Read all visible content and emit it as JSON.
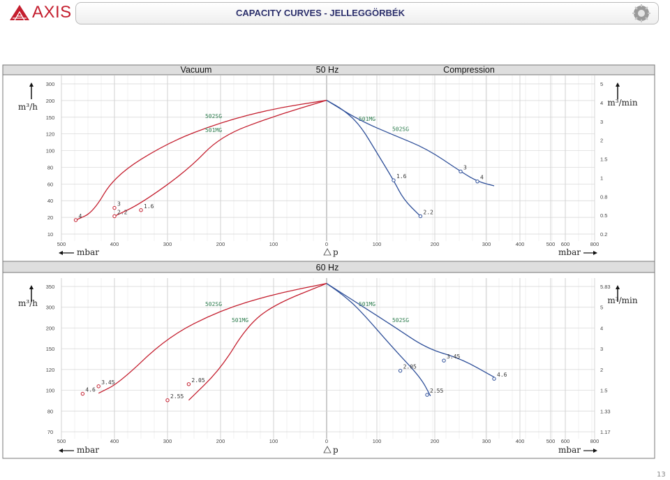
{
  "header": {
    "brand": "AXIS",
    "title": "CAPACITY CURVES - JELLEGGÖRBÉK",
    "page_number": "13"
  },
  "colors": {
    "vacuum_curve": "#c41e2e",
    "compression_curve": "#2e4f99",
    "label_green": "#2e7d4f",
    "band": "#dedede"
  },
  "chart_data": [
    {
      "type": "line",
      "band_title": "",
      "header_labels": [
        "Vacuum",
        "50 Hz",
        "Compression"
      ],
      "left_unit": "m³/h",
      "right_unit": "m³/min",
      "x_left_unit": "mbar",
      "x_center_label": "p",
      "x_right_unit": "mbar",
      "x_ticks_vacuum": [
        500,
        400,
        300,
        200,
        100,
        0
      ],
      "x_ticks_compression": [
        100,
        200,
        300,
        400,
        500,
        600,
        800
      ],
      "y_left_ticks": [
        300,
        200,
        150,
        120,
        100,
        80,
        60,
        40,
        20,
        10
      ],
      "y_right_ticks": [
        "5",
        "4",
        "3",
        "2",
        "1.5",
        "1",
        "0.8",
        "0.5",
        "0.2"
      ],
      "series": [
        {
          "name": "502SG",
          "side": "vacuum",
          "points": [
            [
              0,
              255
            ],
            [
              100,
              240
            ],
            [
              200,
              215
            ],
            [
              300,
              178
            ],
            [
              400,
              118
            ],
            [
              440,
              52
            ],
            [
              473,
              38
            ]
          ],
          "markers": [
            {
              "x": 400,
              "y": 60,
              "label": "3"
            },
            {
              "x": 473,
              "y": 38,
              "label": "4"
            }
          ]
        },
        {
          "name": "501MG",
          "side": "vacuum",
          "points": [
            [
              0,
              255
            ],
            [
              100,
              226
            ],
            [
              200,
              190
            ],
            [
              260,
              130
            ],
            [
              350,
              68
            ],
            [
              400,
              45
            ]
          ],
          "markers": [
            {
              "x": 350,
              "y": 56,
              "label": "1.6"
            },
            {
              "x": 400,
              "y": 45,
              "label": "2.2"
            }
          ]
        },
        {
          "name": "501MG",
          "side": "compression",
          "points": [
            [
              0,
              255
            ],
            [
              50,
              238
            ],
            [
              100,
              210
            ],
            [
              150,
              160
            ],
            [
              200,
              110
            ],
            [
              230,
              75
            ],
            [
              280,
              45
            ]
          ],
          "markers": [
            {
              "x": 200,
              "y": 110,
              "label": "1.6"
            },
            {
              "x": 280,
              "y": 45,
              "label": "2.2"
            }
          ]
        },
        {
          "name": "502SG",
          "side": "compression",
          "points": [
            [
              0,
              255
            ],
            [
              100,
              218
            ],
            [
              200,
              192
            ],
            [
              300,
              167
            ],
            [
              400,
              126
            ],
            [
              450,
              108
            ],
            [
              500,
              100
            ]
          ],
          "markers": [
            {
              "x": 400,
              "y": 126,
              "label": "3"
            },
            {
              "x": 450,
              "y": 108,
              "label": "4"
            }
          ]
        }
      ]
    },
    {
      "type": "line",
      "band_title": "60 Hz",
      "header_labels": [],
      "left_unit": "m³/h",
      "right_unit": "m³/min",
      "x_left_unit": "mbar",
      "x_center_label": "p",
      "x_right_unit": "mbar",
      "x_ticks_vacuum": [
        500,
        400,
        300,
        200,
        100,
        0
      ],
      "x_ticks_compression": [
        100,
        200,
        300,
        400,
        500,
        600,
        800
      ],
      "y_left_ticks": [
        350,
        300,
        200,
        150,
        120,
        100,
        80,
        70
      ],
      "y_right_ticks": [
        "5.83",
        "5",
        "4",
        "3",
        "2",
        "1.5",
        "1.33",
        "1.17"
      ],
      "series": [
        {
          "name": "502SG",
          "side": "vacuum",
          "points": [
            [
              0,
              290
            ],
            [
              100,
              270
            ],
            [
              200,
              240
            ],
            [
              300,
              190
            ],
            [
              390,
              105
            ],
            [
              430,
              85
            ]
          ],
          "markers": [
            {
              "x": 430,
              "y": 98,
              "label": "3.45"
            },
            {
              "x": 460,
              "y": 84,
              "label": "4.6"
            }
          ]
        },
        {
          "name": "501MG",
          "side": "vacuum",
          "points": [
            [
              0,
              290
            ],
            [
              100,
              250
            ],
            [
              150,
              210
            ],
            [
              200,
              130
            ],
            [
              260,
              72
            ]
          ],
          "markers": [
            {
              "x": 260,
              "y": 102,
              "label": "2.05"
            },
            {
              "x": 300,
              "y": 72,
              "label": "2.55"
            }
          ]
        },
        {
          "name": "501MG",
          "side": "compression",
          "points": [
            [
              0,
              290
            ],
            [
              50,
              268
            ],
            [
              100,
              240
            ],
            [
              200,
              168
            ],
            [
              280,
              115
            ],
            [
              310,
              80
            ]
          ],
          "markers": [
            {
              "x": 220,
              "y": 127,
              "label": "2.05"
            },
            {
              "x": 300,
              "y": 82,
              "label": "2.55"
            }
          ]
        },
        {
          "name": "502SG",
          "side": "compression",
          "points": [
            [
              0,
              290
            ],
            [
              100,
              250
            ],
            [
              200,
              210
            ],
            [
              300,
              168
            ],
            [
              400,
              150
            ],
            [
              500,
              115
            ]
          ],
          "markers": [
            {
              "x": 350,
              "y": 146,
              "label": "3.45"
            },
            {
              "x": 500,
              "y": 112,
              "label": "4.6"
            }
          ]
        }
      ]
    }
  ]
}
